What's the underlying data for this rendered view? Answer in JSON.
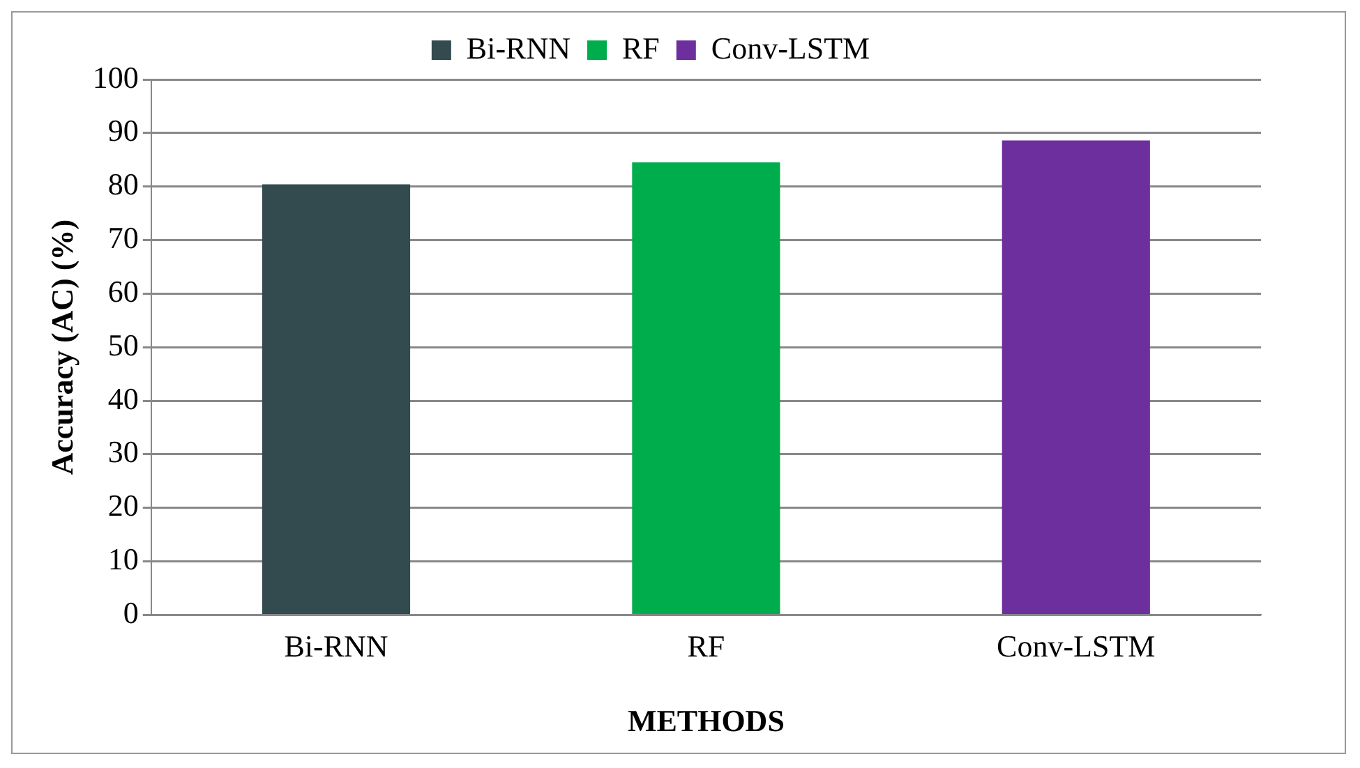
{
  "chart_data": {
    "type": "bar",
    "categories": [
      "Bi-RNN",
      "RF",
      "Conv-LSTM"
    ],
    "series": [
      {
        "name": "Bi-RNN",
        "color": "#334a4f",
        "values": [
          80.4,
          null,
          null
        ]
      },
      {
        "name": "RF",
        "color": "#00ad4c",
        "values": [
          null,
          84.5,
          null
        ]
      },
      {
        "name": "Conv-LSTM",
        "color": "#6e2f9e",
        "values": [
          null,
          null,
          88.6
        ]
      }
    ],
    "xlabel": "METHODS",
    "ylabel": "Accuracy (AC) (%)",
    "ylim": [
      0,
      100
    ],
    "yticks": [
      0,
      10,
      20,
      30,
      40,
      50,
      60,
      70,
      80,
      90,
      100
    ],
    "grid": "y",
    "legend": "top"
  }
}
